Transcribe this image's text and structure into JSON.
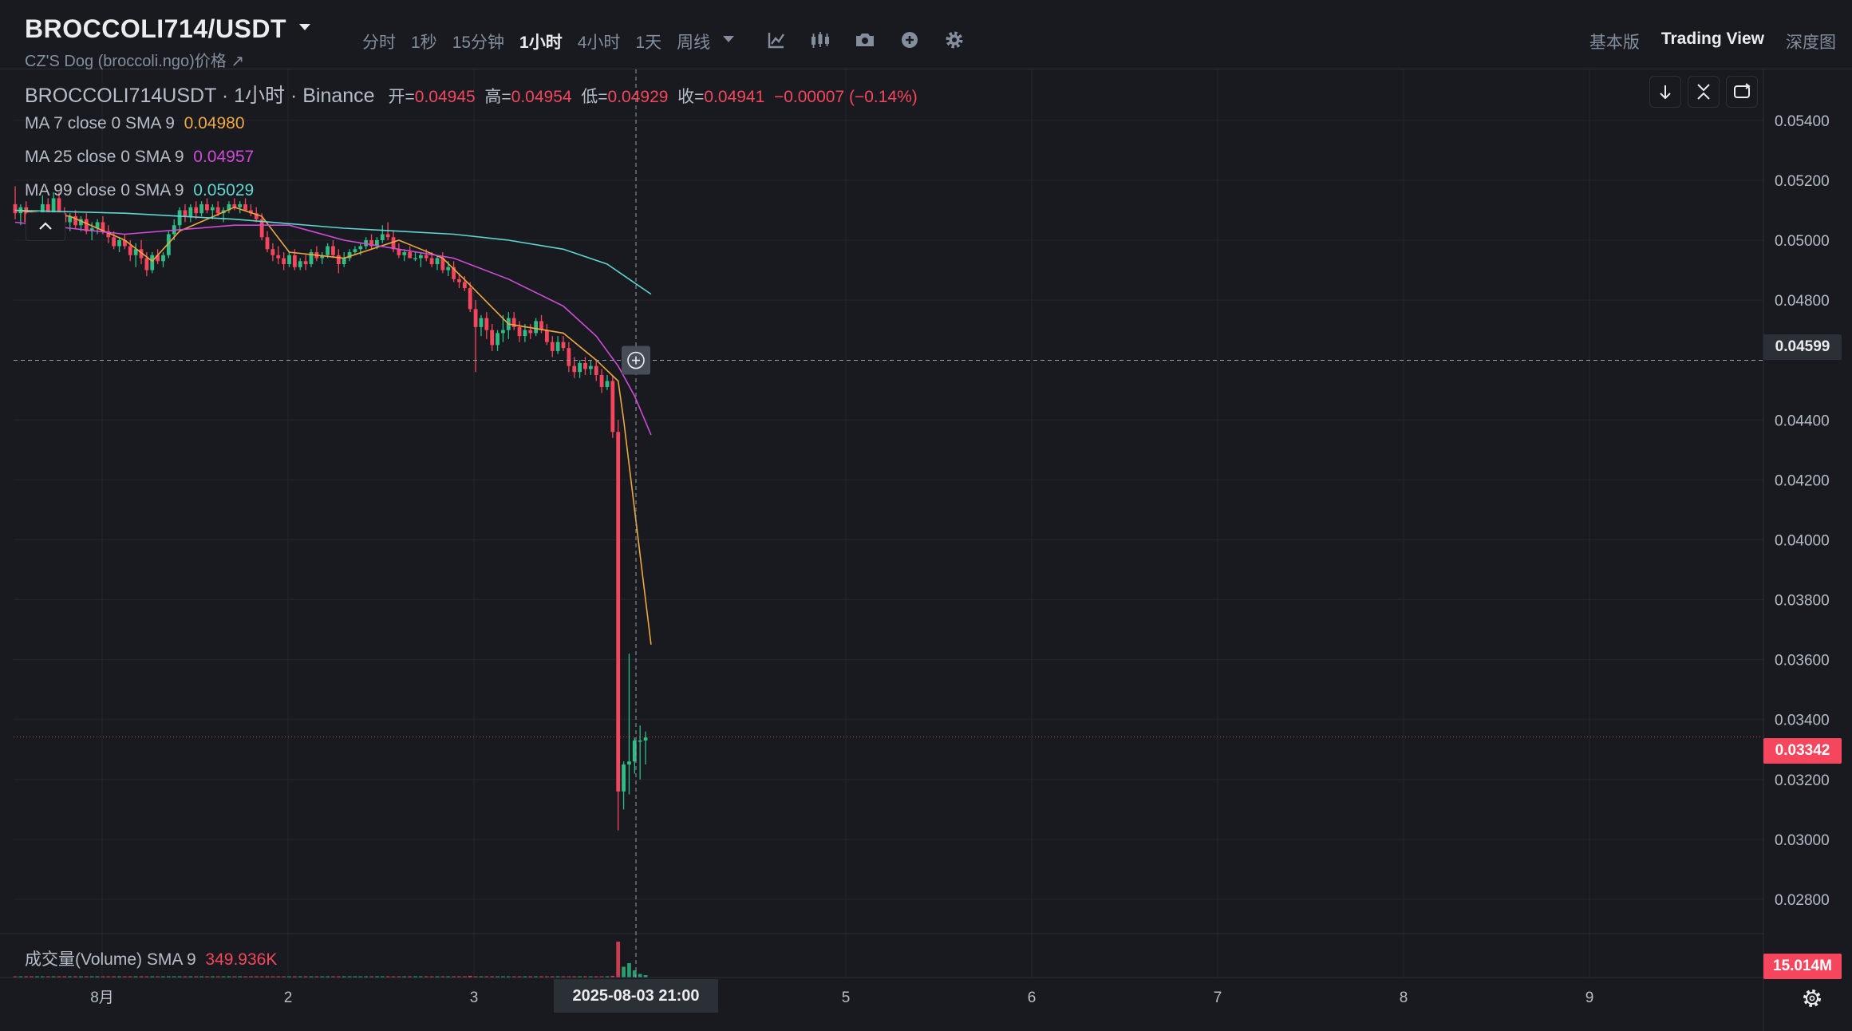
{
  "header": {
    "symbol": "BROCCOLI714/USDT",
    "subtitle": "CZ'S Dog (broccoli.ngo)价格 ↗",
    "intervals": [
      {
        "label": "分时",
        "active": false
      },
      {
        "label": "1秒",
        "active": false
      },
      {
        "label": "15分钟",
        "active": false
      },
      {
        "label": "1小时",
        "active": true
      },
      {
        "label": "4小时",
        "active": false
      },
      {
        "label": "1天",
        "active": false
      },
      {
        "label": "周线",
        "active": false
      }
    ],
    "tools": [
      "indicator-icon",
      "candle-type-icon",
      "camera-icon",
      "add-icon",
      "gear-icon"
    ],
    "views": [
      {
        "label": "基本版",
        "active": false
      },
      {
        "label": "Trading View",
        "active": true
      },
      {
        "label": "深度图",
        "active": false
      }
    ]
  },
  "legend": {
    "title": "BROCCOLI714USDT · 1小时 · Binance",
    "open_label": "开=",
    "open": "0.04945",
    "high_label": "高=",
    "high": "0.04954",
    "low_label": "低=",
    "low": "0.04929",
    "close_label": "收=",
    "close": "0.04941",
    "change": "−0.00007 (−0.14%)",
    "ma": [
      {
        "label": "MA 7 close 0 SMA 9",
        "value": "0.04980",
        "color": "#f0a742"
      },
      {
        "label": "MA 25 close 0 SMA 9",
        "value": "0.04957",
        "color": "#d04bd8"
      },
      {
        "label": "MA 99 close 0 SMA 9",
        "value": "0.05029",
        "color": "#5fd6d0"
      }
    ]
  },
  "price_tags": {
    "crosshair": "0.04599",
    "last": "0.03342",
    "volume": "15.014M"
  },
  "volume_legend": {
    "label": "成交量(Volume) SMA 9",
    "value": "349.936K"
  },
  "crosshair_time": "2025-08-03   21:00",
  "colors": {
    "up": "#2ebd85",
    "down": "#f6465d",
    "ma7": "#f0a742",
    "ma25": "#d04bd8",
    "ma99": "#5fd6d0"
  },
  "chart_data": {
    "type": "candlestick",
    "x_tick_labels": [
      "8月",
      "2",
      "3",
      "5",
      "6",
      "7",
      "8",
      "9"
    ],
    "y_tick_labels": [
      "0.05400",
      "0.05200",
      "0.05000",
      "0.04800",
      "0.04400",
      "0.04200",
      "0.04000",
      "0.03800",
      "0.03600",
      "0.03400",
      "0.03200",
      "0.03000",
      "0.02800"
    ],
    "ylim": [
      0.0272,
      0.0557
    ],
    "candles": [
      [
        0.0512,
        0.0518,
        0.0507,
        0.0509
      ],
      [
        0.0509,
        0.0512,
        0.0505,
        0.0511
      ],
      [
        0.0511,
        0.0513,
        0.0504,
        0.0506
      ],
      [
        0.0506,
        0.051,
        0.05,
        0.0502
      ],
      [
        0.0502,
        0.0508,
        0.05,
        0.0507
      ],
      [
        0.0507,
        0.0515,
        0.0506,
        0.0512
      ],
      [
        0.0512,
        0.0514,
        0.0506,
        0.0508
      ],
      [
        0.0508,
        0.0516,
        0.0507,
        0.0514
      ],
      [
        0.0514,
        0.0516,
        0.0507,
        0.0509
      ],
      [
        0.0509,
        0.0511,
        0.0504,
        0.0506
      ],
      [
        0.0506,
        0.0509,
        0.0503,
        0.0508
      ],
      [
        0.0508,
        0.051,
        0.0504,
        0.0505
      ],
      [
        0.0505,
        0.0508,
        0.0503,
        0.0507
      ],
      [
        0.0507,
        0.0509,
        0.0502,
        0.0503
      ],
      [
        0.0503,
        0.0506,
        0.05,
        0.0504
      ],
      [
        0.0504,
        0.0507,
        0.0502,
        0.0506
      ],
      [
        0.0506,
        0.0508,
        0.0502,
        0.0503
      ],
      [
        0.0503,
        0.0505,
        0.0499,
        0.0501
      ],
      [
        0.0501,
        0.0503,
        0.0497,
        0.0498
      ],
      [
        0.0498,
        0.0501,
        0.0496,
        0.05
      ],
      [
        0.05,
        0.0502,
        0.0497,
        0.0498
      ],
      [
        0.0498,
        0.05,
        0.0493,
        0.0495
      ],
      [
        0.0495,
        0.0499,
        0.0491,
        0.0497
      ],
      [
        0.0497,
        0.05,
        0.0492,
        0.0494
      ],
      [
        0.0494,
        0.0496,
        0.0488,
        0.049
      ],
      [
        0.049,
        0.0496,
        0.0489,
        0.0495
      ],
      [
        0.0495,
        0.0497,
        0.0492,
        0.0493
      ],
      [
        0.0493,
        0.0496,
        0.0491,
        0.0495
      ],
      [
        0.0495,
        0.0503,
        0.0494,
        0.0502
      ],
      [
        0.0502,
        0.0507,
        0.05,
        0.0505
      ],
      [
        0.0505,
        0.0511,
        0.0503,
        0.051
      ],
      [
        0.051,
        0.0512,
        0.0506,
        0.0508
      ],
      [
        0.0508,
        0.0512,
        0.0506,
        0.0511
      ],
      [
        0.0511,
        0.0513,
        0.0507,
        0.0509
      ],
      [
        0.0509,
        0.0513,
        0.0508,
        0.0512
      ],
      [
        0.0512,
        0.0514,
        0.0509,
        0.051
      ],
      [
        0.051,
        0.0512,
        0.0507,
        0.0511
      ],
      [
        0.0511,
        0.0513,
        0.0508,
        0.0509
      ],
      [
        0.0509,
        0.0511,
        0.0506,
        0.051
      ],
      [
        0.051,
        0.0513,
        0.0509,
        0.0512
      ],
      [
        0.0512,
        0.0514,
        0.051,
        0.0511
      ],
      [
        0.0511,
        0.0513,
        0.0509,
        0.0512
      ],
      [
        0.0512,
        0.0514,
        0.051,
        0.051
      ],
      [
        0.051,
        0.0512,
        0.0508,
        0.0509
      ],
      [
        0.0509,
        0.0511,
        0.0506,
        0.0507
      ],
      [
        0.0507,
        0.0509,
        0.05,
        0.0501
      ],
      [
        0.0501,
        0.0503,
        0.0496,
        0.0497
      ],
      [
        0.0497,
        0.0499,
        0.0493,
        0.0495
      ],
      [
        0.0495,
        0.0498,
        0.0492,
        0.0494
      ],
      [
        0.0494,
        0.0496,
        0.049,
        0.0492
      ],
      [
        0.0492,
        0.0496,
        0.0491,
        0.0495
      ],
      [
        0.0495,
        0.0497,
        0.049,
        0.0491
      ],
      [
        0.0491,
        0.0494,
        0.049,
        0.0493
      ],
      [
        0.0493,
        0.0495,
        0.049,
        0.0492
      ],
      [
        0.0492,
        0.0497,
        0.0491,
        0.0496
      ],
      [
        0.0496,
        0.0498,
        0.0493,
        0.0494
      ],
      [
        0.0494,
        0.0496,
        0.0492,
        0.0495
      ],
      [
        0.0495,
        0.0499,
        0.0494,
        0.0498
      ],
      [
        0.0498,
        0.05,
        0.0494,
        0.0495
      ],
      [
        0.0495,
        0.0497,
        0.0489,
        0.0492
      ],
      [
        0.0492,
        0.0496,
        0.0491,
        0.0494
      ],
      [
        0.0494,
        0.0497,
        0.0493,
        0.0496
      ],
      [
        0.0496,
        0.0498,
        0.0495,
        0.0497
      ],
      [
        0.0497,
        0.0499,
        0.0495,
        0.0498
      ],
      [
        0.0498,
        0.0501,
        0.0497,
        0.05
      ],
      [
        0.05,
        0.0502,
        0.0497,
        0.0498
      ],
      [
        0.0498,
        0.0501,
        0.0497,
        0.05
      ],
      [
        0.05,
        0.0505,
        0.0499,
        0.0502
      ],
      [
        0.0502,
        0.0506,
        0.05,
        0.0501
      ],
      [
        0.0501,
        0.0503,
        0.0496,
        0.0497
      ],
      [
        0.0497,
        0.0499,
        0.0494,
        0.0495
      ],
      [
        0.0495,
        0.0497,
        0.0493,
        0.0496
      ],
      [
        0.0496,
        0.0498,
        0.0494,
        0.0494
      ],
      [
        0.0494,
        0.0496,
        0.0493,
        0.0494
      ],
      [
        0.0494,
        0.0496,
        0.0491,
        0.0495
      ],
      [
        0.0495,
        0.0497,
        0.0493,
        0.0494
      ],
      [
        0.0494,
        0.0496,
        0.0491,
        0.0492
      ],
      [
        0.0492,
        0.0495,
        0.049,
        0.0494
      ],
      [
        0.0494,
        0.0496,
        0.0489,
        0.049
      ],
      [
        0.049,
        0.0493,
        0.0488,
        0.0491
      ],
      [
        0.0491,
        0.0493,
        0.0486,
        0.0487
      ],
      [
        0.0487,
        0.0489,
        0.0484,
        0.0486
      ],
      [
        0.0486,
        0.0488,
        0.0483,
        0.0484
      ],
      [
        0.0484,
        0.0486,
        0.0476,
        0.0477
      ],
      [
        0.0477,
        0.048,
        0.0456,
        0.0471
      ],
      [
        0.0471,
        0.0475,
        0.0468,
        0.0474
      ],
      [
        0.0474,
        0.0476,
        0.0467,
        0.047
      ],
      [
        0.047,
        0.0472,
        0.0463,
        0.0465
      ],
      [
        0.0465,
        0.047,
        0.0463,
        0.0469
      ],
      [
        0.0469,
        0.0475,
        0.0466,
        0.047
      ],
      [
        0.047,
        0.0476,
        0.0467,
        0.0474
      ],
      [
        0.0474,
        0.0476,
        0.047,
        0.0471
      ],
      [
        0.0471,
        0.0473,
        0.0466,
        0.0468
      ],
      [
        0.0468,
        0.0472,
        0.0466,
        0.047
      ],
      [
        0.047,
        0.0472,
        0.0467,
        0.0469
      ],
      [
        0.0469,
        0.0474,
        0.0468,
        0.0473
      ],
      [
        0.0473,
        0.0475,
        0.0469,
        0.047
      ],
      [
        0.047,
        0.0472,
        0.0465,
        0.0466
      ],
      [
        0.0466,
        0.0468,
        0.0461,
        0.0463
      ],
      [
        0.0463,
        0.0468,
        0.0462,
        0.0466
      ],
      [
        0.0466,
        0.0468,
        0.0463,
        0.0464
      ],
      [
        0.0464,
        0.0466,
        0.0456,
        0.0458
      ],
      [
        0.0458,
        0.0461,
        0.0454,
        0.0456
      ],
      [
        0.0456,
        0.046,
        0.0454,
        0.0459
      ],
      [
        0.0459,
        0.0461,
        0.0455,
        0.0457
      ],
      [
        0.0457,
        0.046,
        0.0455,
        0.0458
      ],
      [
        0.0458,
        0.046,
        0.0453,
        0.0455
      ],
      [
        0.0455,
        0.0457,
        0.0449,
        0.0451
      ],
      [
        0.0451,
        0.0455,
        0.045,
        0.0453
      ],
      [
        0.0453,
        0.0455,
        0.0434,
        0.0436
      ],
      [
        0.0436,
        0.044,
        0.0303,
        0.0316
      ],
      [
        0.0316,
        0.0326,
        0.031,
        0.0325
      ],
      [
        0.0325,
        0.0362,
        0.0315,
        0.0326
      ],
      [
        0.0326,
        0.0334,
        0.0322,
        0.0333
      ],
      [
        0.0333,
        0.0338,
        0.032,
        0.0333
      ],
      [
        0.0333,
        0.0336,
        0.0325,
        0.0334
      ]
    ],
    "ma7": [
      [
        0,
        0.051
      ],
      [
        10,
        0.0508
      ],
      [
        20,
        0.05
      ],
      [
        25,
        0.0493
      ],
      [
        30,
        0.0503
      ],
      [
        40,
        0.0511
      ],
      [
        45,
        0.0508
      ],
      [
        50,
        0.0496
      ],
      [
        60,
        0.0494
      ],
      [
        70,
        0.05
      ],
      [
        78,
        0.0494
      ],
      [
        83,
        0.0485
      ],
      [
        90,
        0.0472
      ],
      [
        100,
        0.0469
      ],
      [
        106,
        0.046
      ],
      [
        110,
        0.0453
      ],
      [
        111,
        0.044
      ],
      [
        113,
        0.041
      ],
      [
        116,
        0.0365
      ]
    ],
    "ma25": [
      [
        0,
        0.0506
      ],
      [
        20,
        0.0502
      ],
      [
        40,
        0.0505
      ],
      [
        50,
        0.0505
      ],
      [
        60,
        0.05
      ],
      [
        70,
        0.0497
      ],
      [
        80,
        0.0494
      ],
      [
        90,
        0.0487
      ],
      [
        100,
        0.0478
      ],
      [
        106,
        0.0468
      ],
      [
        110,
        0.0458
      ],
      [
        113,
        0.0448
      ],
      [
        116,
        0.0435
      ]
    ],
    "ma99": [
      [
        0,
        0.051
      ],
      [
        20,
        0.0509
      ],
      [
        40,
        0.0507
      ],
      [
        60,
        0.0504
      ],
      [
        70,
        0.0503
      ],
      [
        80,
        0.0502
      ],
      [
        90,
        0.05
      ],
      [
        100,
        0.0497
      ],
      [
        108,
        0.0492
      ],
      [
        112,
        0.0487
      ],
      [
        116,
        0.0482
      ]
    ],
    "volume": [
      0.3,
      0.3,
      0.3,
      0.3,
      0.3,
      0.3,
      0.3,
      0.3,
      0.3,
      0.3,
      0.3,
      0.3,
      0.3,
      0.3,
      0.3,
      0.3,
      0.3,
      0.3,
      0.3,
      0.3,
      0.3,
      0.3,
      0.3,
      0.3,
      0.3,
      0.3,
      0.3,
      0.3,
      0.3,
      0.3,
      0.3,
      0.3,
      0.3,
      0.3,
      0.3,
      0.3,
      0.3,
      0.3,
      0.3,
      0.3,
      0.3,
      0.3,
      0.3,
      0.3,
      0.3,
      0.4,
      0.4,
      0.3,
      0.3,
      0.3,
      0.3,
      0.3,
      0.3,
      0.3,
      0.3,
      0.3,
      0.3,
      0.3,
      0.3,
      0.3,
      0.3,
      0.3,
      0.3,
      0.3,
      0.3,
      0.3,
      0.3,
      0.3,
      0.3,
      0.3,
      0.3,
      0.3,
      0.3,
      0.3,
      0.3,
      0.3,
      0.3,
      0.3,
      0.3,
      0.3,
      0.3,
      0.4,
      0.4,
      0.7,
      0.4,
      0.3,
      0.4,
      0.3,
      0.3,
      0.3,
      0.3,
      0.3,
      0.3,
      0.3,
      0.3,
      0.3,
      0.3,
      0.3,
      0.3,
      0.3,
      0.4,
      0.4,
      0.3,
      0.3,
      0.3,
      0.4,
      0.4,
      0.4,
      0.4,
      0.7,
      15.0,
      4.5,
      6.0,
      3.0,
      1.5,
      1.0
    ]
  }
}
